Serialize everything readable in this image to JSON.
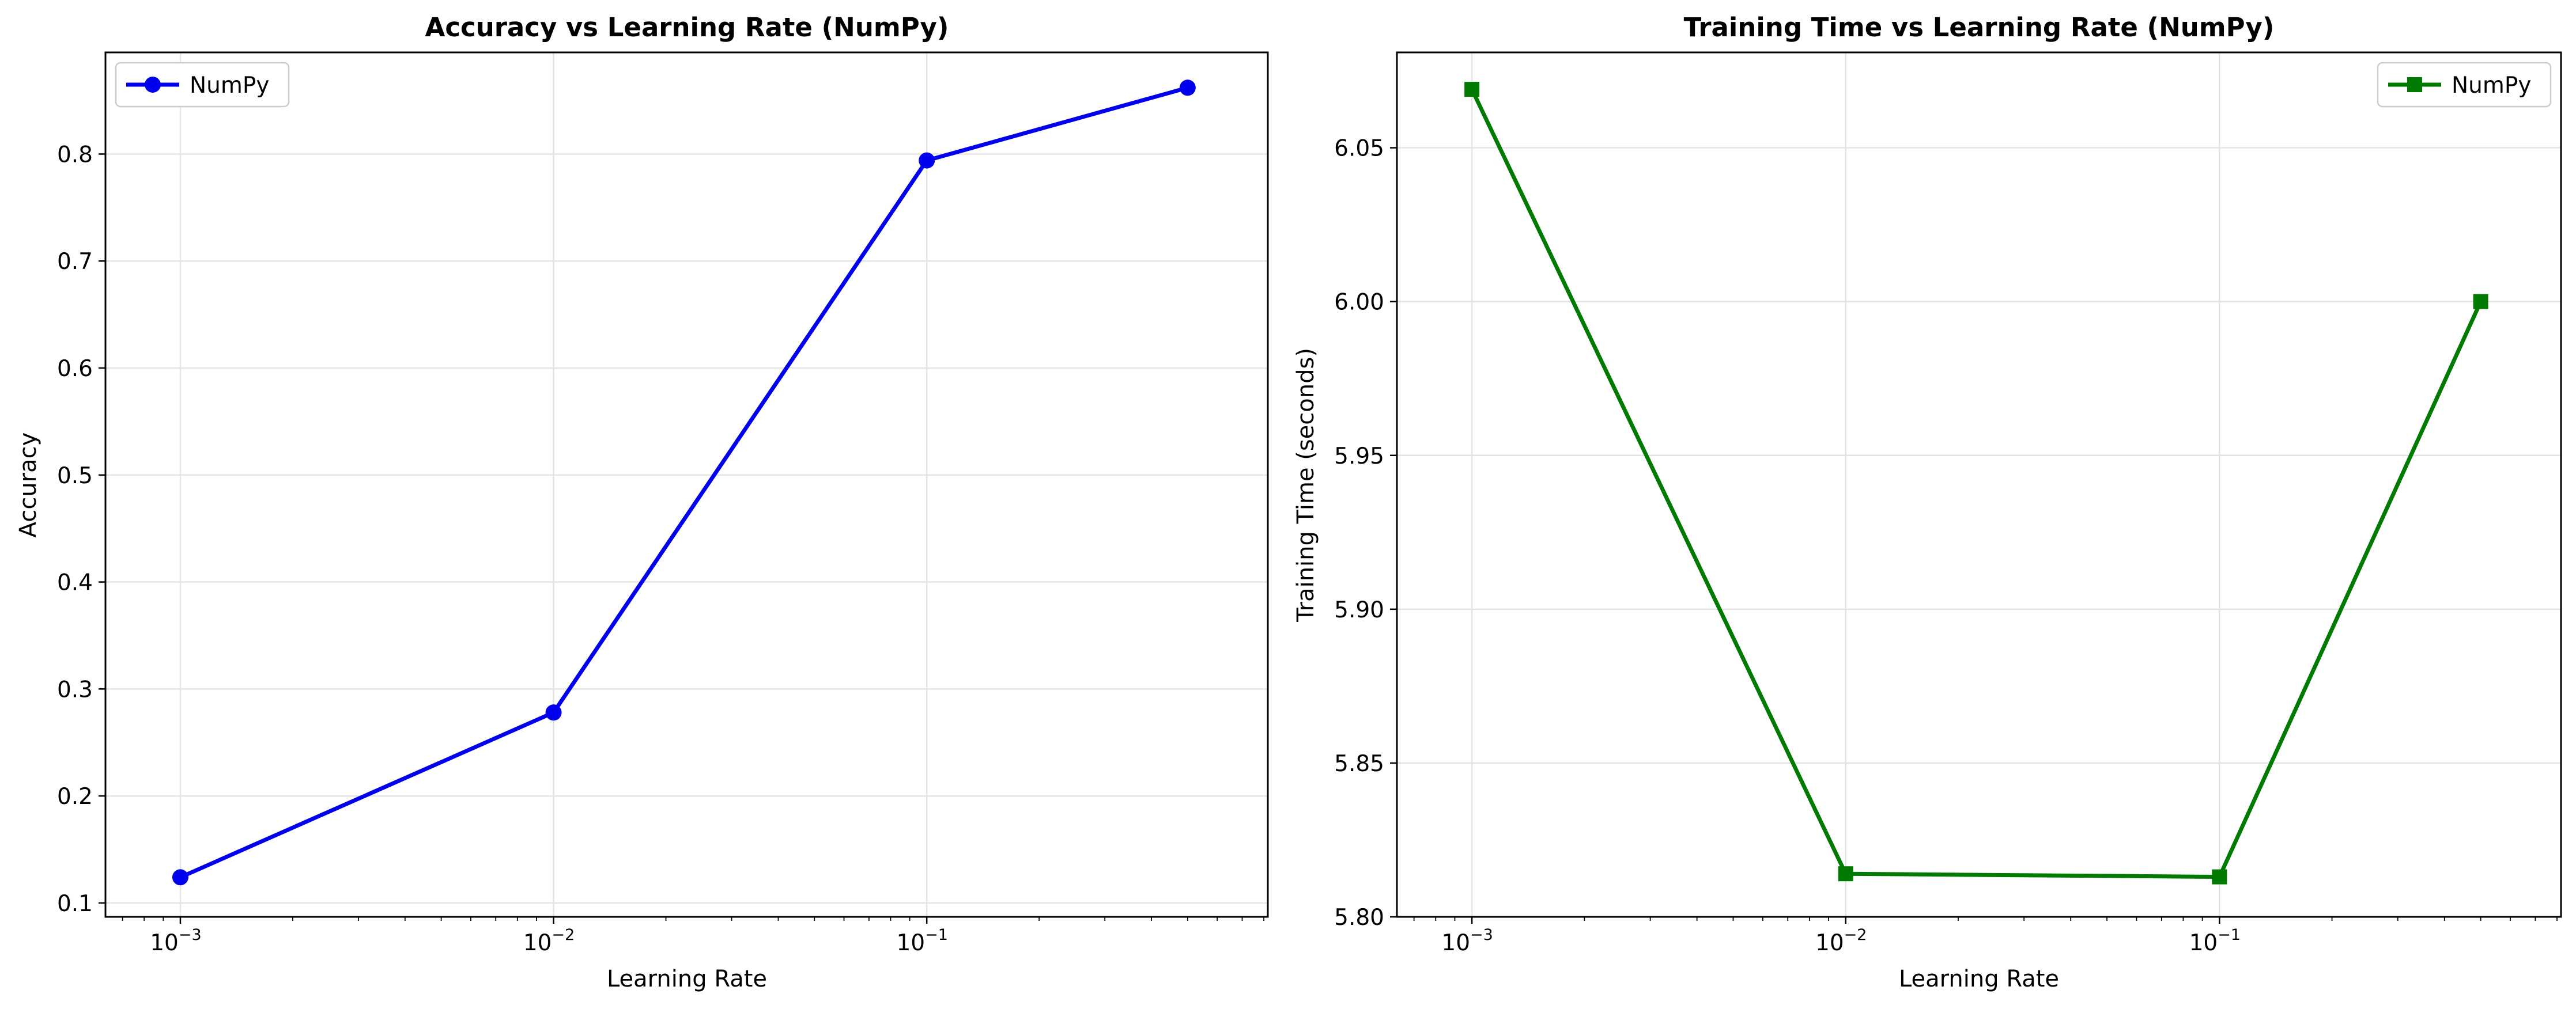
{
  "chart_data": [
    {
      "type": "line",
      "title": "Accuracy vs Learning Rate (NumPy)",
      "xlabel": "Learning Rate",
      "ylabel": "Accuracy",
      "xscale": "log",
      "xlim": [
        0.00063,
        0.82
      ],
      "ylim": [
        0.087,
        0.895
      ],
      "xticks": [
        {
          "base": "10",
          "exp": "−3",
          "value": 0.001
        },
        {
          "base": "10",
          "exp": "−2",
          "value": 0.01
        },
        {
          "base": "10",
          "exp": "−1",
          "value": 0.1
        }
      ],
      "yticks": [
        "0.1",
        "0.2",
        "0.3",
        "0.4",
        "0.5",
        "0.6",
        "0.7",
        "0.8"
      ],
      "grid": true,
      "legend_position": "top-left",
      "series": [
        {
          "name": "NumPy",
          "color": "#0000ee",
          "marker": "circle",
          "x": [
            0.001,
            0.01,
            0.1,
            0.5
          ],
          "y": [
            0.124,
            0.278,
            0.794,
            0.862
          ]
        }
      ]
    },
    {
      "type": "line",
      "title": "Training Time vs Learning Rate (NumPy)",
      "xlabel": "Learning Rate",
      "ylabel": "Training Time (seconds)",
      "xscale": "log",
      "xlim": [
        0.00063,
        0.82
      ],
      "ylim": [
        5.8,
        6.081
      ],
      "xticks": [
        {
          "base": "10",
          "exp": "−3",
          "value": 0.001
        },
        {
          "base": "10",
          "exp": "−2",
          "value": 0.01
        },
        {
          "base": "10",
          "exp": "−1",
          "value": 0.1
        }
      ],
      "yticks": [
        "5.80",
        "5.85",
        "5.90",
        "5.95",
        "6.00",
        "6.05"
      ],
      "grid": true,
      "legend_position": "top-right",
      "series": [
        {
          "name": "NumPy",
          "color": "#007a00",
          "marker": "square",
          "x": [
            0.001,
            0.01,
            0.1,
            0.5
          ],
          "y": [
            6.069,
            5.814,
            5.813,
            6.0
          ]
        }
      ]
    }
  ]
}
